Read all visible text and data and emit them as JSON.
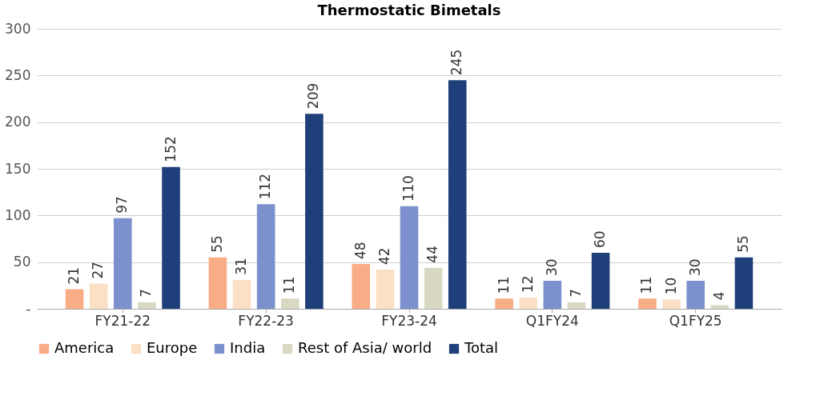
{
  "chart_data": {
    "type": "bar",
    "title": "Thermostatic Bimetals",
    "categories": [
      "FY21-22",
      "FY22-23",
      "FY23-24",
      "Q1FY24",
      "Q1FY25"
    ],
    "series": [
      {
        "name": "America",
        "color": "#f9ad86",
        "values": [
          21,
          55,
          48,
          11,
          11
        ]
      },
      {
        "name": "Europe",
        "color": "#fbe0c6",
        "values": [
          27,
          31,
          42,
          12,
          10
        ]
      },
      {
        "name": "India",
        "color": "#7b90cc",
        "values": [
          97,
          112,
          110,
          30,
          30
        ]
      },
      {
        "name": "Rest of Asia/ world",
        "color": "#d9d9c3",
        "values": [
          7,
          11,
          44,
          7,
          4
        ]
      },
      {
        "name": "Total",
        "color": "#1f3f7a",
        "values": [
          152,
          209,
          245,
          60,
          55
        ]
      }
    ],
    "ylim": [
      0,
      300
    ],
    "yticks": [
      {
        "value": 0,
        "label": "-"
      },
      50,
      100,
      150,
      200,
      250,
      300
    ],
    "grid": "y",
    "legend": "bottom",
    "data_labels": true
  }
}
